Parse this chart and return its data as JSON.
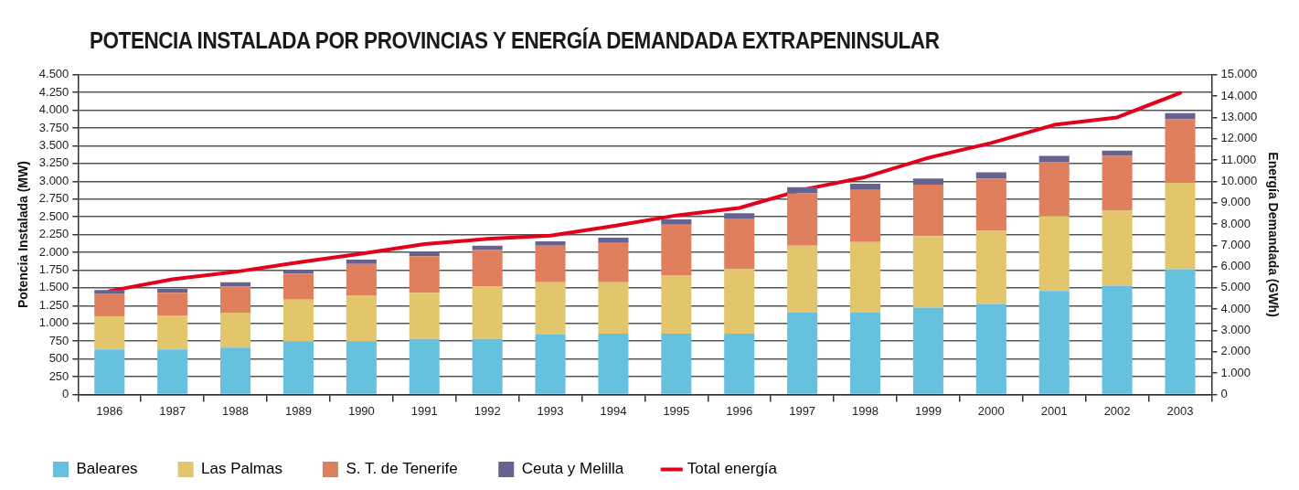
{
  "chart_data": {
    "type": "bar",
    "title": "POTENCIA INSTALADA POR PROVINCIAS Y ENERGÍA DEMANDADA EXTRAPENINSULAR",
    "ylabel": "Potencia Instalada (MW)",
    "y2label": "Energía Demandada (GWh)",
    "categories": [
      "1986",
      "1987",
      "1988",
      "1989",
      "1990",
      "1991",
      "1992",
      "1993",
      "1994",
      "1995",
      "1996",
      "1997",
      "1998",
      "1999",
      "2000",
      "2001",
      "2002",
      "2003"
    ],
    "stacked": true,
    "series": [
      {
        "name": "Baleares",
        "color": "#66c1df",
        "values": [
          634,
          634,
          659,
          745,
          745,
          781,
          781,
          843,
          855,
          855,
          855,
          1150,
          1150,
          1223,
          1272,
          1456,
          1530,
          1763
        ]
      },
      {
        "name": "Las Palmas",
        "color": "#e3c56b",
        "values": [
          466,
          479,
          491,
          589,
          650,
          651,
          737,
          736,
          724,
          822,
          908,
          945,
          994,
          1007,
          1031,
          1056,
          1055,
          1215
        ]
      },
      {
        "name": "S. T. de Tenerife",
        "color": "#e07f5e",
        "values": [
          320,
          319,
          368,
          368,
          442,
          515,
          515,
          516,
          552,
          712,
          712,
          736,
          736,
          724,
          737,
          761,
          774,
          896
        ]
      },
      {
        "name": "Ceuta y Melilla",
        "color": "#676391",
        "values": [
          49,
          53,
          61,
          49,
          61,
          62,
          62,
          61,
          74,
          74,
          74,
          86,
          86,
          86,
          85,
          86,
          73,
          86
        ]
      },
      {
        "name": "Total energía",
        "type": "line",
        "axis": "y2",
        "color": "#e2001a",
        "values": [
          4850,
          5400,
          5750,
          6200,
          6600,
          7050,
          7300,
          7450,
          7900,
          8400,
          8750,
          9600,
          10200,
          11100,
          11800,
          12650,
          13000,
          14150
        ]
      }
    ],
    "ylim": [
      0,
      4500
    ],
    "yticks": [
      0,
      250,
      500,
      750,
      {
        "value": 1000,
        "label": "1.000"
      },
      {
        "value": 1250,
        "label": "1.250"
      },
      {
        "value": 1500,
        "label": "1.500"
      },
      {
        "value": 1750,
        "label": "1.750"
      },
      {
        "value": 2000,
        "label": "2.000"
      },
      {
        "value": 2250,
        "label": "2.250"
      },
      {
        "value": 2500,
        "label": "2.500"
      },
      {
        "value": 2750,
        "label": "2.750"
      },
      {
        "value": 3000,
        "label": "3.000"
      },
      {
        "value": 3250,
        "label": "3.250"
      },
      {
        "value": 3500,
        "label": "3.500"
      },
      {
        "value": 3750,
        "label": "3.750"
      },
      {
        "value": 4000,
        "label": "4.000"
      },
      {
        "value": 4250,
        "label": "4.250"
      },
      {
        "value": 4500,
        "label": "4.500"
      }
    ],
    "y2lim": [
      0,
      15000
    ],
    "y2ticks": [
      0,
      {
        "value": 1000,
        "label": "1.000"
      },
      {
        "value": 2000,
        "label": "2.000"
      },
      {
        "value": 3000,
        "label": "3.000"
      },
      {
        "value": 4000,
        "label": "4.000"
      },
      {
        "value": 5000,
        "label": "5.000"
      },
      {
        "value": 6000,
        "label": "6.000"
      },
      {
        "value": 7000,
        "label": "7.000"
      },
      {
        "value": 8000,
        "label": "8.000"
      },
      {
        "value": 9000,
        "label": "9.000"
      },
      {
        "value": 10000,
        "label": "10.000"
      },
      {
        "value": 11000,
        "label": "11.000"
      },
      {
        "value": 12000,
        "label": "12.000"
      },
      {
        "value": 13000,
        "label": "13.000"
      },
      {
        "value": 14000,
        "label": "14.000"
      },
      {
        "value": 15000,
        "label": "15.000"
      }
    ],
    "grid": "y",
    "legend": "bottom left",
    "marker": "none",
    "line_style": "solid"
  }
}
